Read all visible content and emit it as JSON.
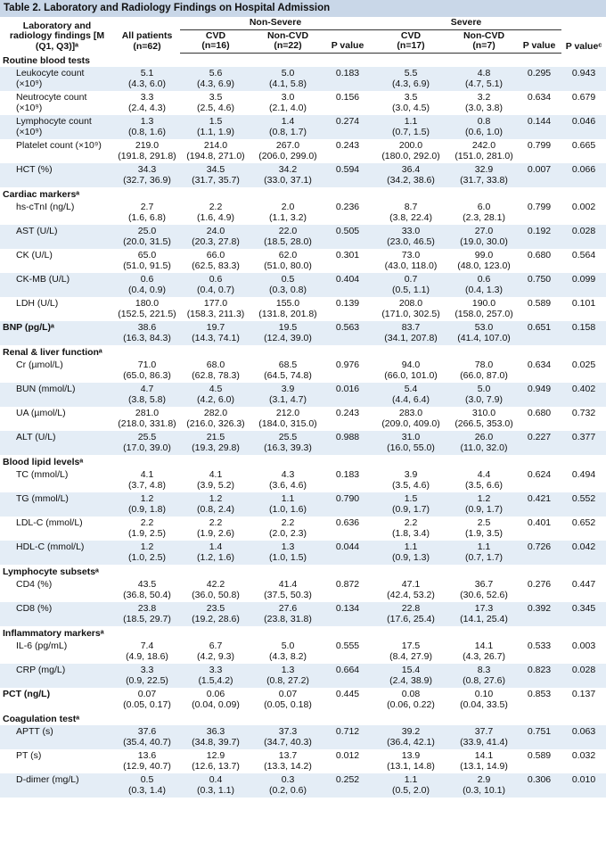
{
  "title": "Table 2.  Laboratory and Radiology Findings on Hospital Admission",
  "header": {
    "findings": "Laboratory and radiology findings [M (Q1, Q3)]ᵃ",
    "all": "All patients",
    "all_n": "(n=62)",
    "groups": [
      {
        "name": "Non-Severe",
        "cols": [
          {
            "name": "CVD",
            "n": "(n=16)"
          },
          {
            "name": "Non-CVD",
            "n": "(n=22)"
          },
          {
            "name": "P value"
          }
        ]
      },
      {
        "name": "Severe",
        "cols": [
          {
            "name": "CVD",
            "n": "(n=17)"
          },
          {
            "name": "Non-CVD",
            "n": "(n=7)"
          },
          {
            "name": "P value"
          }
        ]
      }
    ],
    "p_overall": "P valueᶜ"
  },
  "rows": [
    {
      "section": "Routine blood tests"
    },
    {
      "label": "Leukocyte count (×10⁹)",
      "cells": [
        [
          "5.1",
          "(4.3, 6.0)"
        ],
        [
          "5.6",
          "(4.3, 6.9)"
        ],
        [
          "5.0",
          "(4.1, 5.8)"
        ],
        "0.183",
        [
          "5.5",
          "(4.3, 6.9)"
        ],
        [
          "4.8",
          "(4.7, 5.1)"
        ],
        "0.295",
        "0.943"
      ]
    },
    {
      "label": "Neutrocyte count (×10⁹)",
      "cells": [
        [
          "3.3",
          "(2.4, 4.3)"
        ],
        [
          "3.5",
          "(2.5, 4.6)"
        ],
        [
          "3.0",
          "(2.1, 4.0)"
        ],
        "0.156",
        [
          "3.5",
          "(3.0, 4.5)"
        ],
        [
          "3.2",
          "(3.0, 3.8)"
        ],
        "0.634",
        "0.679"
      ]
    },
    {
      "label": "Lymphocyte count (×10⁹)",
      "cells": [
        [
          "1.3",
          "(0.8, 1.6)"
        ],
        [
          "1.5",
          "(1.1, 1.9)"
        ],
        [
          "1.4",
          "(0.8, 1.7)"
        ],
        "0.274",
        [
          "1.1",
          "(0.7, 1.5)"
        ],
        [
          "0.8",
          "(0.6, 1.0)"
        ],
        "0.144",
        "0.046"
      ]
    },
    {
      "label": "Platelet count (×10⁹)",
      "cells": [
        [
          "219.0",
          "(191.8, 291.8)"
        ],
        [
          "214.0",
          "(194.8, 271.0)"
        ],
        [
          "267.0",
          "(206.0, 299.0)"
        ],
        "0.243",
        [
          "200.0",
          "(180.0, 292.0)"
        ],
        [
          "242.0",
          "(151.0, 281.0)"
        ],
        "0.799",
        "0.665"
      ]
    },
    {
      "label": "HCT (%)",
      "cells": [
        [
          "34.3",
          "(32.7, 36.9)"
        ],
        [
          "34.5",
          "(31.7, 35.7)"
        ],
        [
          "34.2",
          "(33.0, 37.1)"
        ],
        "0.594",
        [
          "36.4",
          "(34.2, 38.6)"
        ],
        [
          "32.9",
          "(31.7, 33.8)"
        ],
        "0.007",
        "0.066"
      ]
    },
    {
      "section": "Cardiac markersᵃ"
    },
    {
      "label": "hs-cTnI (ng/L)",
      "cells": [
        [
          "2.7",
          "(1.6, 6.8)"
        ],
        [
          "2.2",
          "(1.6, 4.9)"
        ],
        [
          "2.0",
          "(1.1, 3.2)"
        ],
        "0.236",
        [
          "8.7",
          "(3.8, 22.4)"
        ],
        [
          "6.0",
          "(2.3, 28.1)"
        ],
        "0.799",
        "0.002"
      ]
    },
    {
      "label": "AST (U/L)",
      "cells": [
        [
          "25.0",
          "(20.0, 31.5)"
        ],
        [
          "24.0",
          "(20.3, 27.8)"
        ],
        [
          "22.0",
          "(18.5, 28.0)"
        ],
        "0.505",
        [
          "33.0",
          "(23.0, 46.5)"
        ],
        [
          "27.0",
          "(19.0, 30.0)"
        ],
        "0.192",
        "0.028"
      ]
    },
    {
      "label": "CK (U/L)",
      "cells": [
        [
          "65.0",
          "(51.0, 91.5)"
        ],
        [
          "66.0",
          "(62.5, 83.3)"
        ],
        [
          "62.0",
          "(51.0, 80.0)"
        ],
        "0.301",
        [
          "73.0",
          "(43.0, 118.0)"
        ],
        [
          "99.0",
          "(48.0, 123.0)"
        ],
        "0.680",
        "0.564"
      ]
    },
    {
      "label": "CK-MB (U/L)",
      "cells": [
        [
          "0.6",
          "(0.4, 0.9)"
        ],
        [
          "0.6",
          "(0.4, 0.7)"
        ],
        [
          "0.5",
          "(0.3, 0.8)"
        ],
        "0.404",
        [
          "0.7",
          "(0.5, 1.1)"
        ],
        [
          "0.6",
          "(0.4, 1.3)"
        ],
        "0.750",
        "0.099"
      ]
    },
    {
      "label": "LDH (U/L)",
      "cells": [
        [
          "180.0",
          "(152.5, 221.5)"
        ],
        [
          "177.0",
          "(158.3, 211.3)"
        ],
        [
          "155.0",
          "(131.8, 201.8)"
        ],
        "0.139",
        [
          "208.0",
          "(171.0, 302.5)"
        ],
        [
          "190.0",
          "(158.0, 257.0)"
        ],
        "0.589",
        "0.101"
      ]
    },
    {
      "heading": "BNP (pg/L)ᵃ",
      "cells": [
        [
          "38.6",
          "(16.3, 84.3)"
        ],
        [
          "19.7",
          "(14.3, 74.1)"
        ],
        [
          "19.5",
          "(12.4, 39.0)"
        ],
        "0.563",
        [
          "83.7",
          "(34.1, 207.8)"
        ],
        [
          "53.0",
          "(41.4, 107.0)"
        ],
        "0.651",
        "0.158"
      ]
    },
    {
      "section": "Renal & liver functionᵃ"
    },
    {
      "label": "Cr (µmol/L)",
      "cells": [
        [
          "71.0",
          "(65.0, 86.3)"
        ],
        [
          "68.0",
          "(62.8, 78.3)"
        ],
        [
          "68.5",
          "(64.5, 74.8)"
        ],
        "0.976",
        [
          "94.0",
          "(66.0, 101.0)"
        ],
        [
          "78.0",
          "(66.0, 87.0)"
        ],
        "0.634",
        "0.025"
      ]
    },
    {
      "label": "BUN (mmol/L)",
      "cells": [
        [
          "4.7",
          "(3.8, 5.8)"
        ],
        [
          "4.5",
          "(4.2, 6.0)"
        ],
        [
          "3.9",
          "(3.1, 4.7)"
        ],
        "0.016",
        [
          "5.4",
          "(4.4, 6.4)"
        ],
        [
          "5.0",
          "(3.0, 7.9)"
        ],
        "0.949",
        "0.402"
      ]
    },
    {
      "label": "UA (µmol/L)",
      "cells": [
        [
          "281.0",
          "(218.0, 331.8)"
        ],
        [
          "282.0",
          "(216.0, 326.3)"
        ],
        [
          "212.0",
          "(184.0, 315.0)"
        ],
        "0.243",
        [
          "283.0",
          "(209.0, 409.0)"
        ],
        [
          "310.0",
          "(266.5, 353.0)"
        ],
        "0.680",
        "0.732"
      ]
    },
    {
      "label": "ALT (U/L)",
      "cells": [
        [
          "25.5",
          "(17.0, 39.0)"
        ],
        [
          "21.5",
          "(19.3, 29.8)"
        ],
        [
          "25.5",
          "(16.3, 39.3)"
        ],
        "0.988",
        [
          "31.0",
          "(16.0, 55.0)"
        ],
        [
          "26.0",
          "(11.0, 32.0)"
        ],
        "0.227",
        "0.377"
      ]
    },
    {
      "section": "Blood lipid levelsᵃ"
    },
    {
      "label": "TC (mmol/L)",
      "cells": [
        [
          "4.1",
          "(3.7, 4.8)"
        ],
        [
          "4.1",
          "(3.9, 5.2)"
        ],
        [
          "4.3",
          "(3.6, 4.6)"
        ],
        "0.183",
        [
          "3.9",
          "(3.5, 4.6)"
        ],
        [
          "4.4",
          "(3.5, 6.6)"
        ],
        "0.624",
        "0.494"
      ]
    },
    {
      "label": "TG (mmol/L)",
      "cells": [
        [
          "1.2",
          "(0.9, 1.8)"
        ],
        [
          "1.2",
          "(0.8, 2.4)"
        ],
        [
          "1.1",
          "(1.0, 1.6)"
        ],
        "0.790",
        [
          "1.5",
          "(0.9, 1.7)"
        ],
        [
          "1.2",
          "(0.9, 1.7)"
        ],
        "0.421",
        "0.552"
      ]
    },
    {
      "label": "LDL-C (mmol/L)",
      "cells": [
        [
          "2.2",
          "(1.9, 2.5)"
        ],
        [
          "2.2",
          "(1.9, 2.6)"
        ],
        [
          "2.2",
          "(2.0, 2.3)"
        ],
        "0.636",
        [
          "2.2",
          "(1.8, 3.4)"
        ],
        [
          "2.5",
          "(1.9, 3.5)"
        ],
        "0.401",
        "0.652"
      ]
    },
    {
      "label": "HDL-C (mmol/L)",
      "cells": [
        [
          "1.2",
          "(1.0, 2.5)"
        ],
        [
          "1.4",
          "(1.2, 1.6)"
        ],
        [
          "1.3",
          "(1.0, 1.5)"
        ],
        "0.044",
        [
          "1.1",
          "(0.9, 1.3)"
        ],
        [
          "1.1",
          "(0.7, 1.7)"
        ],
        "0.726",
        "0.042"
      ]
    },
    {
      "section": "Lymphocyte subsetsᵃ"
    },
    {
      "label": "CD4 (%)",
      "cells": [
        [
          "43.5",
          "(36.8, 50.4)"
        ],
        [
          "42.2",
          "(36.0, 50.8)"
        ],
        [
          "41.4",
          "(37.5, 50.3)"
        ],
        "0.872",
        [
          "47.1",
          "(42.4, 53.2)"
        ],
        [
          "36.7",
          "(30.6, 52.6)"
        ],
        "0.276",
        "0.447"
      ]
    },
    {
      "label": "CD8 (%)",
      "cells": [
        [
          "23.8",
          "(18.5, 29.7)"
        ],
        [
          "23.5",
          "(19.2, 28.6)"
        ],
        [
          "27.6",
          "(23.8, 31.8)"
        ],
        "0.134",
        [
          "22.8",
          "(17.6, 25.4)"
        ],
        [
          "17.3",
          "(14.1, 25.4)"
        ],
        "0.392",
        "0.345"
      ]
    },
    {
      "section": "Inflammatory markersᵃ"
    },
    {
      "label": "IL-6 (pg/mL)",
      "cells": [
        [
          "7.4",
          "(4.9, 18.6)"
        ],
        [
          "6.7",
          "(4.2, 9.3)"
        ],
        [
          "5.0",
          "(4.3, 8.2)"
        ],
        "0.555",
        [
          "17.5",
          "(8.4, 27.9)"
        ],
        [
          "14.1",
          "(4.3, 26.7)"
        ],
        "0.533",
        "0.003"
      ]
    },
    {
      "label": "CRP (mg/L)",
      "cells": [
        [
          "3.3",
          "(0.9, 22.5)"
        ],
        [
          "3.3",
          "(1.5,4.2)"
        ],
        [
          "1.3",
          "(0.8, 27.2)"
        ],
        "0.664",
        [
          "15.4",
          "(2.4, 38.9)"
        ],
        [
          "8.3",
          "(0.8, 27.6)"
        ],
        "0.823",
        "0.028"
      ]
    },
    {
      "heading": "PCT (ng/L)",
      "cells": [
        [
          "0.07",
          "(0.05, 0.17)"
        ],
        [
          "0.06",
          "(0.04, 0.09)"
        ],
        [
          "0.07",
          "(0.05, 0.18)"
        ],
        "0.445",
        [
          "0.08",
          "(0.06, 0.22)"
        ],
        [
          "0.10",
          "(0.04, 33.5)"
        ],
        "0.853",
        "0.137"
      ]
    },
    {
      "section": "Coagulation testᵃ"
    },
    {
      "label": "APTT (s)",
      "cells": [
        [
          "37.6",
          "(35.4, 40.7)"
        ],
        [
          "36.3",
          "(34.8, 39.7)"
        ],
        [
          "37.3",
          "(34.7, 40.3)"
        ],
        "0.712",
        [
          "39.2",
          "(36.4, 42.1)"
        ],
        [
          "37.7",
          "(33.9, 41.4)"
        ],
        "0.751",
        "0.063"
      ]
    },
    {
      "label": "PT (s)",
      "cells": [
        [
          "13.6",
          "(12.9, 40.7)"
        ],
        [
          "12.9",
          "(12.6, 13.7)"
        ],
        [
          "13.7",
          "(13.3, 14.2)"
        ],
        "0.012",
        [
          "13.9",
          "(13.1, 14.8)"
        ],
        [
          "14.1",
          "(13.1, 14.9)"
        ],
        "0.589",
        "0.032"
      ]
    },
    {
      "label": "D-dimer (mg/L)",
      "cells": [
        [
          "0.5",
          "(0.3, 1.4)"
        ],
        [
          "0.4",
          "(0.3, 1.1)"
        ],
        [
          "0.3",
          "(0.2, 0.6)"
        ],
        "0.252",
        [
          "1.1",
          "(0.5, 2.0)"
        ],
        [
          "2.9",
          "(0.3, 10.1)"
        ],
        "0.306",
        "0.010"
      ]
    }
  ]
}
